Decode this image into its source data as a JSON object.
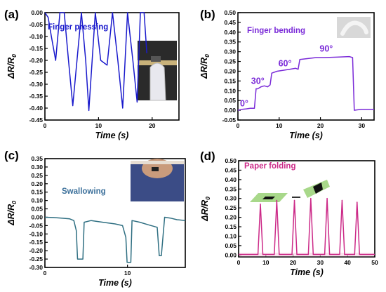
{
  "colors": {
    "a": "#1a1acc",
    "b": "#7a2ad8",
    "c": "#2f6f82",
    "d": "#cc2a88",
    "c_title": "#3a6f9a",
    "axis": "#000000"
  },
  "chart_data": [
    {
      "panel": "(a)",
      "type": "line",
      "title": "Finger pressing",
      "xlabel": "Time (s)",
      "ylabel_main": "ΔR/R",
      "ylabel_sub": "0",
      "xlim": [
        0,
        25
      ],
      "ylim": [
        -0.45,
        0.0
      ],
      "xticks": [
        "0",
        "10",
        "20"
      ],
      "yticks": [
        "0.00",
        "-0.05",
        "-0.10",
        "-0.15",
        "-0.20",
        "-0.25",
        "-0.30",
        "-0.35",
        "-0.40",
        "-0.45"
      ],
      "series": [
        {
          "x": [
            0,
            0.6,
            1.2,
            2.0,
            2.8,
            3.6,
            4.4,
            5.2,
            6.8,
            7.6,
            8.2,
            9.4,
            10.4,
            11.6,
            12.6,
            13.6,
            14.5,
            15.4,
            16.4,
            17.2,
            17.8,
            18.5,
            19.0
          ],
          "y": [
            0,
            -0.02,
            -0.1,
            -0.2,
            0.0,
            0.0,
            -0.2,
            -0.39,
            0.0,
            -0.2,
            -0.41,
            0.0,
            -0.2,
            -0.22,
            0.0,
            -0.2,
            -0.4,
            0.0,
            -0.2,
            -0.375,
            0.0,
            0.0,
            -0.17
          ]
        }
      ]
    },
    {
      "panel": "(b)",
      "type": "line",
      "title": "Finger bending",
      "xlabel": "Time (s)",
      "ylabel_main": "ΔR/R",
      "ylabel_sub": "0",
      "xlim": [
        0,
        33
      ],
      "ylim": [
        -0.05,
        0.5
      ],
      "xticks": [
        "0",
        "10",
        "20",
        "30"
      ],
      "yticks": [
        "-0.05",
        "0.00",
        "0.05",
        "0.10",
        "0.15",
        "0.20",
        "0.25",
        "0.30",
        "0.35",
        "0.40",
        "0.45",
        "0.50"
      ],
      "annotations": [
        {
          "text": "0°",
          "x": 0.5,
          "y": 0.02
        },
        {
          "text": "30°",
          "x": 3.2,
          "y": 0.135
        },
        {
          "text": "60°",
          "x": 9.8,
          "y": 0.225
        },
        {
          "text": "90°",
          "x": 19.8,
          "y": 0.3
        }
      ],
      "series": [
        {
          "x": [
            0,
            1,
            2,
            3,
            4,
            4.4,
            4.8,
            5.6,
            6.4,
            7.2,
            7.8,
            8.2,
            9.5,
            11,
            12.5,
            14,
            14.6,
            15,
            17,
            19,
            21,
            24,
            27,
            27.8,
            28.2,
            30,
            33
          ],
          "y": [
            0.0,
            0.005,
            0.007,
            0.01,
            0.01,
            0.11,
            0.11,
            0.12,
            0.125,
            0.12,
            0.13,
            0.19,
            0.2,
            0.205,
            0.21,
            0.215,
            0.21,
            0.26,
            0.265,
            0.27,
            0.27,
            0.272,
            0.275,
            0.27,
            0.0,
            0.005,
            0.005
          ]
        }
      ]
    },
    {
      "panel": "(c)",
      "type": "line",
      "title": "Swallowing",
      "xlabel": "Time (s)",
      "ylabel_main": "ΔR/R",
      "ylabel_sub": "0",
      "xlim": [
        0,
        17
      ],
      "ylim": [
        -0.3,
        0.35
      ],
      "xticks": [
        "0",
        "10"
      ],
      "yticks": [
        "0.35",
        "0.30",
        "0.25",
        "0.20",
        "0.15",
        "0.10",
        "0.05",
        "0.00",
        "-0.05",
        "-0.10",
        "-0.15",
        "-0.20",
        "-0.25",
        "-0.30"
      ],
      "series": [
        {
          "x": [
            0,
            1,
            2,
            3,
            3.5,
            3.8,
            3.95,
            4.6,
            4.75,
            5.6,
            7,
            8.5,
            9.4,
            9.8,
            9.95,
            10.4,
            10.55,
            11.5,
            12.5,
            13.6,
            13.85,
            14.1,
            14.5,
            15.2,
            16,
            17
          ],
          "y": [
            0.0,
            -0.002,
            -0.005,
            -0.01,
            -0.02,
            -0.08,
            -0.25,
            -0.25,
            -0.03,
            -0.02,
            -0.03,
            -0.04,
            -0.05,
            -0.12,
            -0.27,
            -0.27,
            -0.02,
            -0.03,
            -0.045,
            -0.06,
            -0.23,
            -0.23,
            0.0,
            -0.005,
            -0.015,
            -0.02
          ]
        }
      ]
    },
    {
      "panel": "(d)",
      "type": "line",
      "title": "Paper folding",
      "xlabel": "Time (s)",
      "ylabel_main": "ΔR/R",
      "ylabel_sub": "0",
      "xlim": [
        0,
        50
      ],
      "ylim": [
        -0.01,
        0.5
      ],
      "xticks": [
        "0",
        "10",
        "20",
        "30",
        "40",
        "50"
      ],
      "yticks": [
        "0.00",
        "0.05",
        "0.10",
        "0.15",
        "0.20",
        "0.25",
        "0.30",
        "0.35",
        "0.40",
        "0.45",
        "0.50"
      ],
      "peak_times": [
        8,
        14,
        20.5,
        26.5,
        32.5,
        38,
        43.5
      ],
      "peak_values": [
        0.27,
        0.29,
        0.29,
        0.3,
        0.3,
        0.29,
        0.28
      ],
      "peak_half_width": 0.9,
      "baseline": 0.003
    }
  ]
}
